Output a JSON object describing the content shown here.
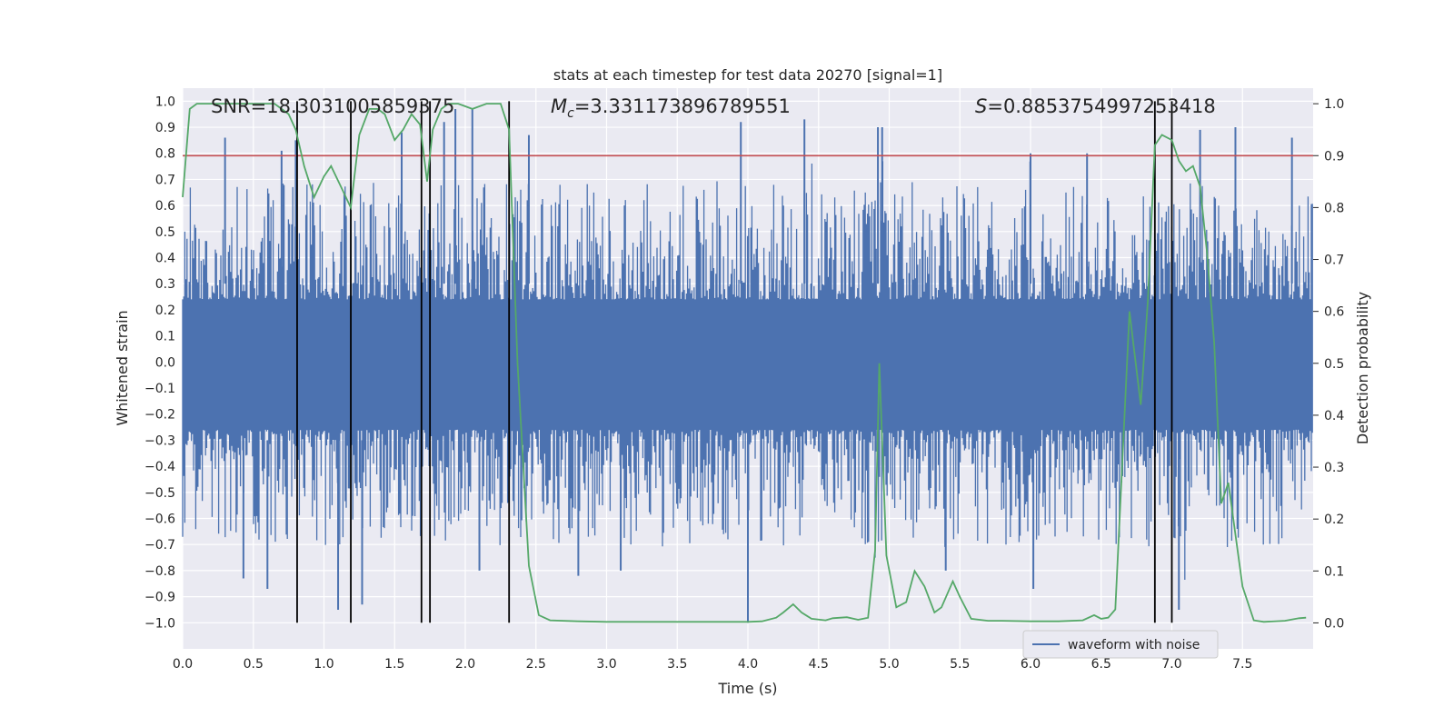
{
  "chart_data": {
    "type": "line",
    "title": "stats at each timestep for test data 20270 [signal=1]",
    "xlabel": "Time (s)",
    "ylabel_left": "Whitened strain",
    "ylabel_right": "Detection probability",
    "xlim": [
      0.0,
      8.0
    ],
    "ylim_left": [
      -1.1,
      1.05
    ],
    "ylim_right": [
      -0.05,
      1.03
    ],
    "x_ticks": [
      "0.0",
      "0.5",
      "1.0",
      "1.5",
      "2.0",
      "2.5",
      "3.0",
      "3.5",
      "4.0",
      "4.5",
      "5.0",
      "5.5",
      "6.0",
      "6.5",
      "7.0",
      "7.5"
    ],
    "y_left_ticks": [
      "1.0",
      "0.9",
      "0.8",
      "0.7",
      "0.6",
      "0.5",
      "0.4",
      "0.3",
      "0.2",
      "0.1",
      "0.0",
      "−0.1",
      "−0.2",
      "−0.3",
      "−0.4",
      "−0.5",
      "−0.6",
      "−0.7",
      "−0.8",
      "−0.9",
      "−1.0"
    ],
    "y_right_ticks": [
      "1.0",
      "0.9",
      "0.8",
      "0.7",
      "0.6",
      "0.5",
      "0.4",
      "0.3",
      "0.2",
      "0.1",
      "0.0"
    ],
    "annotations": {
      "snr": "SNR=18.3031005859375",
      "mc_symbol": "M",
      "mc_sub": "c",
      "mc_value": "=3.331173896789551",
      "s_symbol": "S",
      "s_value": "=0.8853754997253418"
    },
    "threshold": {
      "value": 0.9,
      "color": "#c44e52"
    },
    "vertical_lines": [
      0.81,
      1.19,
      1.69,
      1.75,
      2.31,
      6.88,
      7.0
    ],
    "vertical_line_range_left": [
      -1.0,
      1.0
    ],
    "legend": {
      "label": "waveform with noise",
      "location": "lower right"
    },
    "series": [
      {
        "name": "waveform with noise",
        "axis": "left",
        "color": "#4c72b0",
        "envelope_note": "dense noise band roughly between -0.45 and 0.40 with spikes up to about ±0.95",
        "spikes": [
          [
            0.3,
            0.86
          ],
          [
            0.43,
            -0.83
          ],
          [
            0.6,
            -0.87
          ],
          [
            0.7,
            0.81
          ],
          [
            0.8,
            0.85
          ],
          [
            1.1,
            -0.95
          ],
          [
            1.27,
            -0.93
          ],
          [
            1.55,
            0.88
          ],
          [
            1.85,
            0.92
          ],
          [
            1.93,
            0.97
          ],
          [
            2.05,
            0.97
          ],
          [
            2.1,
            -0.8
          ],
          [
            2.45,
            0.87
          ],
          [
            2.8,
            -0.82
          ],
          [
            3.1,
            -0.8
          ],
          [
            3.95,
            0.92
          ],
          [
            4.0,
            -1.0
          ],
          [
            4.4,
            0.93
          ],
          [
            4.92,
            0.9
          ],
          [
            4.95,
            0.9
          ],
          [
            5.4,
            -0.8
          ],
          [
            6.0,
            0.8
          ],
          [
            6.02,
            -0.87
          ],
          [
            6.4,
            0.8
          ],
          [
            7.05,
            -0.95
          ],
          [
            7.2,
            0.89
          ],
          [
            7.45,
            0.9
          ],
          [
            7.85,
            0.86
          ]
        ]
      },
      {
        "name": "detection probability",
        "axis": "right",
        "color": "#55a868",
        "x": [
          0.0,
          0.05,
          0.1,
          0.2,
          0.3,
          0.4,
          0.5,
          0.6,
          0.65,
          0.7,
          0.75,
          0.8,
          0.86,
          0.93,
          1.0,
          1.05,
          1.12,
          1.19,
          1.25,
          1.32,
          1.38,
          1.43,
          1.5,
          1.56,
          1.62,
          1.68,
          1.73,
          1.77,
          1.83,
          1.88,
          1.95,
          2.05,
          2.15,
          2.25,
          2.31,
          2.37,
          2.45,
          2.52,
          2.6,
          2.8,
          3.0,
          3.2,
          3.4,
          3.6,
          3.8,
          4.0,
          4.1,
          4.2,
          4.25,
          4.32,
          4.38,
          4.45,
          4.55,
          4.6,
          4.7,
          4.78,
          4.85,
          4.9,
          4.93,
          4.98,
          5.05,
          5.12,
          5.18,
          5.25,
          5.32,
          5.37,
          5.45,
          5.5,
          5.58,
          5.7,
          5.8,
          6.0,
          6.2,
          6.37,
          6.45,
          6.5,
          6.55,
          6.6,
          6.7,
          6.78,
          6.83,
          6.88,
          6.93,
          7.0,
          7.05,
          7.1,
          7.15,
          7.2,
          7.25,
          7.3,
          7.35,
          7.4,
          7.5,
          7.58,
          7.65,
          7.8,
          7.9,
          7.95
        ],
        "y": [
          0.82,
          0.99,
          1.0,
          1.0,
          1.0,
          1.0,
          1.0,
          1.0,
          1.0,
          0.99,
          0.98,
          0.95,
          0.88,
          0.82,
          0.86,
          0.88,
          0.84,
          0.8,
          0.94,
          0.99,
          0.99,
          0.98,
          0.93,
          0.95,
          0.98,
          0.96,
          0.85,
          0.95,
          0.99,
          1.0,
          1.0,
          0.99,
          1.0,
          1.0,
          0.95,
          0.5,
          0.11,
          0.015,
          0.005,
          0.003,
          0.002,
          0.002,
          0.002,
          0.002,
          0.002,
          0.002,
          0.003,
          0.01,
          0.02,
          0.036,
          0.02,
          0.008,
          0.005,
          0.009,
          0.011,
          0.006,
          0.01,
          0.14,
          0.5,
          0.13,
          0.03,
          0.04,
          0.1,
          0.07,
          0.02,
          0.03,
          0.08,
          0.05,
          0.008,
          0.004,
          0.004,
          0.003,
          0.003,
          0.005,
          0.015,
          0.008,
          0.01,
          0.026,
          0.6,
          0.42,
          0.62,
          0.92,
          0.94,
          0.93,
          0.89,
          0.87,
          0.88,
          0.84,
          0.71,
          0.54,
          0.23,
          0.27,
          0.07,
          0.005,
          0.002,
          0.004,
          0.009,
          0.01
        ]
      }
    ]
  }
}
